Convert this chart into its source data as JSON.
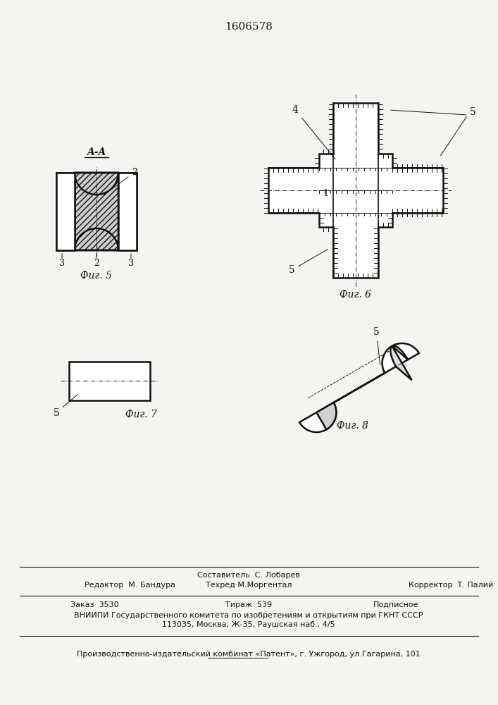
{
  "patent_number": "1606578",
  "bg": "#f5f4f0",
  "lc": "#111111",
  "fig5_label": "Фиг. 5",
  "fig6_label": "Фиг. 6",
  "fig7_label": "Фиг. 7",
  "fig8_label": "Фиг. 8",
  "footer_composer": "Составитель  С. Лобарев",
  "footer_editor": "Редактор  М. Бандура",
  "footer_tech": "Техред М.Моргентал",
  "footer_corrector": "Корректор  Т. Палий",
  "footer_order": "Заказ  3530",
  "footer_tirazh": "Тираж  539",
  "footer_podp": "Подписное",
  "footer_vniip": "ВНИИПИ Государственного комитета по изобретениям и открытиям при ГКНТ СССР",
  "footer_addr": "113035, Москва, Ж-35, Раушская наб., 4/5",
  "footer_prod": "Производственно-издательский комбинат «Патент», г. Ужгород, ул.Гагарина, 101"
}
